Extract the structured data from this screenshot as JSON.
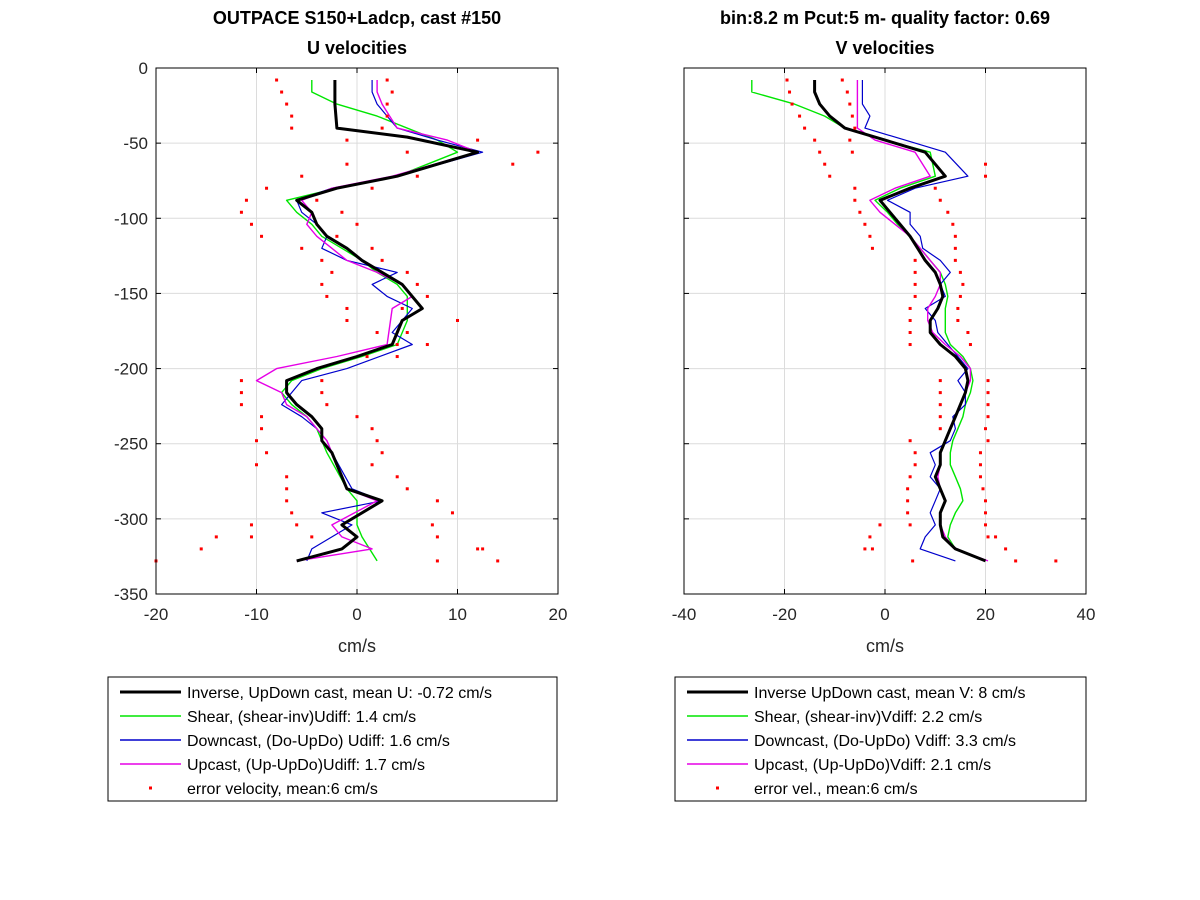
{
  "chart_data": [
    {
      "type": "line",
      "title": "OUTPACE S150+Ladcp, cast #150",
      "subtitle": "U velocities",
      "xlabel": "cm/s",
      "ylabel": "",
      "xlim": [
        -20,
        20
      ],
      "ylim": [
        -350,
        0
      ],
      "xticks": [
        -20,
        -10,
        0,
        10,
        20
      ],
      "yticks": [
        0,
        -50,
        -100,
        -150,
        -200,
        -250,
        -300,
        -350
      ],
      "grid": true,
      "legend_position": "below",
      "colors": {
        "inverse": "#000000",
        "shear": "#00e600",
        "down": "#0000cc",
        "up": "#e600e6",
        "error": "#ff0000"
      },
      "series": [
        {
          "name": "Inverse, UpDown cast, mean U:  -0.72 cm/s",
          "key": "inverse",
          "x": [
            -2.2,
            -2.2,
            -2.2,
            -2.0,
            5.0,
            12.0,
            4.0,
            -2.0,
            -6.0,
            -4.5,
            -4.0,
            -3.0,
            -1.0,
            0.5,
            2.5,
            4.5,
            6.5,
            4.5,
            3.5,
            0.0,
            -4.0,
            -7.0,
            -7.0,
            -6.0,
            -4.5,
            -3.5,
            -3.5,
            -2.5,
            -1.0,
            2.5,
            -1.5,
            0.0,
            -1.5,
            -6.0
          ],
          "y": [
            -8,
            -16,
            -24,
            -40,
            -46,
            -56,
            -72,
            -80,
            -88,
            -96,
            -104,
            -112,
            -120,
            -128,
            -136,
            -144,
            -160,
            -168,
            -184,
            -192,
            -200,
            -208,
            -216,
            -224,
            -232,
            -240,
            -248,
            -256,
            -280,
            -288,
            -304,
            -312,
            -320,
            -328
          ]
        },
        {
          "name": "Shear, (shear-inv)Udiff:  1.4 cm/s",
          "key": "shear",
          "x": [
            -4.5,
            -4.5,
            -2.0,
            2.0,
            8.0,
            10.0,
            4.0,
            -2.0,
            -7.0,
            -6.0,
            -4.5,
            -3.5,
            -1.5,
            0.5,
            2.0,
            4.0,
            5.0,
            5.0,
            4.0,
            0.5,
            -3.5,
            -6.5,
            -7.5,
            -6.5,
            -5.0,
            -4.0,
            -3.5,
            -3.0,
            -1.0,
            0.0,
            0.0,
            0.5,
            2.0
          ],
          "y": [
            -8,
            -16,
            -24,
            -32,
            -48,
            -56,
            -72,
            -80,
            -88,
            -96,
            -104,
            -112,
            -120,
            -128,
            -136,
            -144,
            -152,
            -168,
            -184,
            -192,
            -200,
            -208,
            -216,
            -224,
            -232,
            -240,
            -248,
            -256,
            -280,
            -288,
            -304,
            -312,
            -328
          ]
        },
        {
          "name": "Downcast, (Do-UpDo) Udiff:  1.6 cm/s",
          "key": "down",
          "x": [
            1.5,
            1.5,
            2.0,
            4.0,
            8.0,
            12.5,
            4.0,
            -2.5,
            -6.0,
            -5.5,
            -4.0,
            -3.0,
            -3.5,
            -1.0,
            4.0,
            1.5,
            3.0,
            5.5,
            3.5,
            5.5,
            -1.0,
            -5.5,
            -6.5,
            -7.5,
            -5.5,
            -4.0,
            -3.0,
            -2.5,
            -0.5,
            2.5,
            -3.5,
            -0.5,
            -2.5,
            -4.5,
            -5.0
          ],
          "y": [
            -8,
            -16,
            -24,
            -40,
            -48,
            -56,
            -72,
            -80,
            -88,
            -96,
            -104,
            -112,
            -120,
            -128,
            -136,
            -144,
            -152,
            -160,
            -176,
            -184,
            -200,
            -208,
            -216,
            -224,
            -232,
            -240,
            -248,
            -256,
            -280,
            -288,
            -296,
            -304,
            -312,
            -320,
            -328
          ]
        },
        {
          "name": "Upcast, (Up-UpDo)Udiff:  1.7 cm/s",
          "key": "up",
          "x": [
            2.0,
            2.0,
            2.5,
            4.0,
            9.0,
            12.0,
            3.5,
            -2.5,
            -5.5,
            -4.5,
            -5.0,
            -4.0,
            -2.5,
            -1.0,
            2.0,
            4.5,
            5.5,
            3.5,
            3.0,
            -2.0,
            -8.0,
            -10.0,
            -7.5,
            -7.0,
            -5.0,
            -4.0,
            -3.0,
            -2.5,
            -1.0,
            2.0,
            -2.5,
            -1.5,
            1.5,
            -6.0
          ],
          "y": [
            -8,
            -16,
            -24,
            -40,
            -48,
            -56,
            -72,
            -80,
            -88,
            -96,
            -104,
            -112,
            -120,
            -128,
            -136,
            -144,
            -152,
            -160,
            -184,
            -192,
            -200,
            -208,
            -216,
            -224,
            -232,
            -240,
            -248,
            -256,
            -280,
            -288,
            -304,
            -312,
            -320,
            -328
          ]
        },
        {
          "name": "error velocity, mean:6 cm/s",
          "key": "error",
          "marker": "dots",
          "x": [
            -8.0,
            3.0,
            -7.5,
            3.5,
            -7.0,
            3.0,
            -6.5,
            3.0,
            -6.5,
            2.5,
            12.0,
            -1.0,
            5.0,
            18.0,
            15.5,
            -1.0,
            6.0,
            -5.5,
            1.5,
            -9.0,
            -4.0,
            -11.0,
            -1.5,
            -11.5,
            0.0,
            -10.5,
            -2.0,
            -9.5,
            1.5,
            -5.5,
            2.5,
            -3.5,
            -2.5,
            5.0,
            -3.5,
            6.0,
            -3.0,
            7.0,
            -1.0,
            4.5,
            -1.0,
            10.0,
            2.0,
            5.0,
            4.0,
            7.0,
            1.0,
            4.0,
            -11.5,
            -3.5,
            -11.5,
            -3.5,
            -11.5,
            -3.0,
            -9.5,
            0.0,
            -9.5,
            1.5,
            -10.0,
            2.0,
            -9.0,
            2.5,
            -10.0,
            1.5,
            -7.0,
            4.0,
            -7.0,
            5.0,
            -7.0,
            8.0,
            -6.5,
            9.5,
            -6.0,
            7.5,
            -4.5,
            -10.5,
            8.0,
            -10.5,
            12.0,
            -14.0,
            12.5,
            -15.5,
            14.0,
            -20.0,
            8.0
          ],
          "y": [
            -8,
            -8,
            -16,
            -16,
            -24,
            -24,
            -32,
            -32,
            -40,
            -40,
            -48,
            -48,
            -56,
            -56,
            -64,
            -64,
            -72,
            -72,
            -80,
            -80,
            -88,
            -88,
            -96,
            -96,
            -104,
            -104,
            -112,
            -112,
            -120,
            -120,
            -128,
            -128,
            -136,
            -136,
            -144,
            -144,
            -152,
            -152,
            -160,
            -160,
            -168,
            -168,
            -176,
            -176,
            -184,
            -184,
            -192,
            -192,
            -208,
            -208,
            -216,
            -216,
            -224,
            -224,
            -232,
            -232,
            -240,
            -240,
            -248,
            -248,
            -256,
            -256,
            -264,
            -264,
            -272,
            -272,
            -280,
            -280,
            -288,
            -288,
            -296,
            -296,
            -304,
            -304,
            -312,
            -304,
            -312,
            -312,
            -320,
            -312,
            -320,
            -320,
            -328,
            -328,
            -328
          ]
        }
      ]
    },
    {
      "type": "line",
      "title": "bin:8.2 m  Pcut:5 m- quality factor:  0.69",
      "subtitle": "V velocities",
      "xlabel": "cm/s",
      "ylabel": "",
      "xlim": [
        -40,
        40
      ],
      "ylim": [
        -350,
        0
      ],
      "xticks": [
        -40,
        -20,
        0,
        20,
        40
      ],
      "yticks": [
        0,
        -50,
        -100,
        -150,
        -200,
        -250,
        -300,
        -350
      ],
      "grid": true,
      "legend_position": "below",
      "colors": {
        "inverse": "#000000",
        "shear": "#00e600",
        "down": "#0000cc",
        "up": "#e600e6",
        "error": "#ff0000"
      },
      "series": [
        {
          "name": "Inverse UpDown cast, mean V:  8 cm/s",
          "key": "inverse",
          "x": [
            -14.0,
            -14.0,
            -13.0,
            -11.0,
            -8.0,
            0.0,
            8.0,
            12.0,
            5.0,
            -1.0,
            1.0,
            3.0,
            5.0,
            6.5,
            8.0,
            10.0,
            11.0,
            11.5,
            10.5,
            9.0,
            9.0,
            11.0,
            14.0,
            16.0,
            16.5,
            16.0,
            15.0,
            14.0,
            13.0,
            12.0,
            11.0,
            11.0,
            10.0,
            11.0,
            12.0,
            11.0,
            11.0,
            11.5,
            14.0,
            20.0
          ],
          "y": [
            -8,
            -16,
            -24,
            -32,
            -40,
            -48,
            -56,
            -72,
            -80,
            -88,
            -96,
            -104,
            -112,
            -120,
            -128,
            -136,
            -144,
            -152,
            -160,
            -168,
            -176,
            -184,
            -192,
            -200,
            -208,
            -216,
            -224,
            -232,
            -240,
            -248,
            -256,
            -264,
            -272,
            -280,
            -288,
            -296,
            -304,
            -312,
            -320,
            -328
          ]
        },
        {
          "name": "Shear, (shear-inv)Vdiff:  2.2 cm/s",
          "key": "shear",
          "x": [
            -26.5,
            -26.5,
            -18.0,
            -12.0,
            -8.0,
            0.0,
            9.0,
            10.0,
            3.0,
            -2.0,
            0.5,
            2.5,
            5.0,
            7.0,
            9.0,
            11.0,
            12.0,
            12.5,
            12.0,
            12.0,
            12.0,
            13.0,
            15.5,
            17.0,
            17.5,
            17.0,
            16.0,
            15.5,
            14.5,
            13.5,
            13.0,
            13.0,
            14.0,
            15.0,
            15.5,
            14.0,
            13.0,
            12.5,
            14.0,
            20.0
          ],
          "y": [
            -8,
            -16,
            -24,
            -32,
            -40,
            -48,
            -56,
            -72,
            -80,
            -88,
            -96,
            -104,
            -112,
            -120,
            -128,
            -136,
            -144,
            -152,
            -160,
            -168,
            -176,
            -184,
            -192,
            -200,
            -208,
            -216,
            -224,
            -232,
            -240,
            -248,
            -256,
            -264,
            -272,
            -280,
            -288,
            -296,
            -304,
            -312,
            -320,
            -328
          ]
        },
        {
          "name": "Downcast, (Do-UpDo) Vdiff:  3.3 cm/s",
          "key": "down",
          "x": [
            -4.5,
            -4.5,
            -4.5,
            -3.0,
            -4.0,
            4.0,
            12.0,
            16.5,
            6.0,
            0.5,
            5.0,
            5.0,
            7.0,
            7.5,
            11.0,
            13.0,
            11.0,
            12.0,
            8.0,
            10.0,
            10.5,
            12.5,
            14.5,
            16.5,
            14.5,
            16.0,
            16.0,
            13.5,
            14.0,
            13.0,
            9.0,
            10.0,
            9.0,
            11.0,
            10.0,
            9.0,
            10.0,
            8.0,
            7.0,
            14.0
          ],
          "y": [
            -8,
            -16,
            -24,
            -32,
            -40,
            -48,
            -56,
            -72,
            -80,
            -88,
            -96,
            -104,
            -112,
            -120,
            -128,
            -136,
            -144,
            -152,
            -160,
            -168,
            -176,
            -184,
            -192,
            -200,
            -208,
            -216,
            -224,
            -232,
            -240,
            -248,
            -256,
            -264,
            -272,
            -280,
            -288,
            -296,
            -304,
            -312,
            -320,
            -328
          ]
        },
        {
          "name": "Upcast, (Up-UpDo)Vdiff:  2.1 cm/s",
          "key": "up",
          "x": [
            -5.5,
            -5.5,
            -5.5,
            -5.5,
            -5.5,
            -2.0,
            6.0,
            9.0,
            2.0,
            -3.0,
            -1.0,
            2.0,
            5.0,
            7.0,
            9.0,
            11.0,
            11.0,
            10.0,
            8.5,
            8.5,
            9.5,
            12.0,
            15.0,
            17.0,
            17.0,
            16.0,
            15.0,
            14.0,
            13.0,
            12.0,
            11.0,
            11.0,
            10.5,
            11.0,
            12.0,
            11.0,
            11.0,
            12.0,
            14.0,
            20.5
          ],
          "y": [
            -8,
            -16,
            -24,
            -32,
            -40,
            -48,
            -56,
            -72,
            -80,
            -88,
            -96,
            -104,
            -112,
            -120,
            -128,
            -136,
            -144,
            -152,
            -160,
            -168,
            -176,
            -184,
            -192,
            -200,
            -208,
            -216,
            -224,
            -232,
            -240,
            -248,
            -256,
            -264,
            -272,
            -280,
            -288,
            -296,
            -304,
            -312,
            -320,
            -328
          ]
        },
        {
          "name": "error vel., mean:6 cm/s",
          "key": "error",
          "marker": "dots",
          "x": [
            -19.5,
            -8.5,
            -19.0,
            -7.5,
            -18.5,
            -7.0,
            -17.0,
            -6.5,
            -16.0,
            -6.0,
            -14.0,
            -7.0,
            -13.0,
            -6.5,
            20.0,
            -12.0,
            20.0,
            -11.0,
            10.0,
            -6.0,
            11.0,
            -6.0,
            12.5,
            -5.0,
            13.5,
            -4.0,
            14.0,
            -3.0,
            14.0,
            -2.5,
            14.0,
            6.0,
            15.0,
            6.0,
            15.5,
            6.0,
            15.0,
            6.0,
            14.5,
            5.0,
            14.5,
            5.0,
            16.5,
            5.0,
            17.0,
            5.0,
            20.5,
            11.0,
            20.5,
            11.0,
            20.5,
            11.0,
            20.5,
            11.0,
            20.0,
            11.0,
            20.5,
            5.0,
            19.0,
            6.0,
            19.0,
            6.0,
            19.0,
            5.0,
            19.5,
            4.5,
            20.0,
            4.5,
            20.0,
            4.5,
            20.0,
            5.0,
            20.5,
            -1.0,
            22.0,
            -3.0,
            24.0,
            -2.5,
            26.0,
            -4.0,
            34.0,
            5.5
          ],
          "y": [
            -8,
            -8,
            -16,
            -16,
            -24,
            -24,
            -32,
            -32,
            -40,
            -40,
            -48,
            -48,
            -56,
            -56,
            -64,
            -64,
            -72,
            -72,
            -80,
            -80,
            -88,
            -88,
            -96,
            -96,
            -104,
            -104,
            -112,
            -112,
            -120,
            -120,
            -128,
            -128,
            -136,
            -136,
            -144,
            -144,
            -152,
            -152,
            -160,
            -160,
            -168,
            -168,
            -176,
            -176,
            -184,
            -184,
            -208,
            -208,
            -216,
            -216,
            -224,
            -224,
            -232,
            -232,
            -240,
            -240,
            -248,
            -248,
            -256,
            -256,
            -264,
            -264,
            -272,
            -272,
            -280,
            -280,
            -288,
            -288,
            -296,
            -296,
            -304,
            -304,
            -312,
            -304,
            -312,
            -312,
            -320,
            -320,
            -328,
            -320,
            -328,
            -328
          ]
        }
      ]
    }
  ]
}
